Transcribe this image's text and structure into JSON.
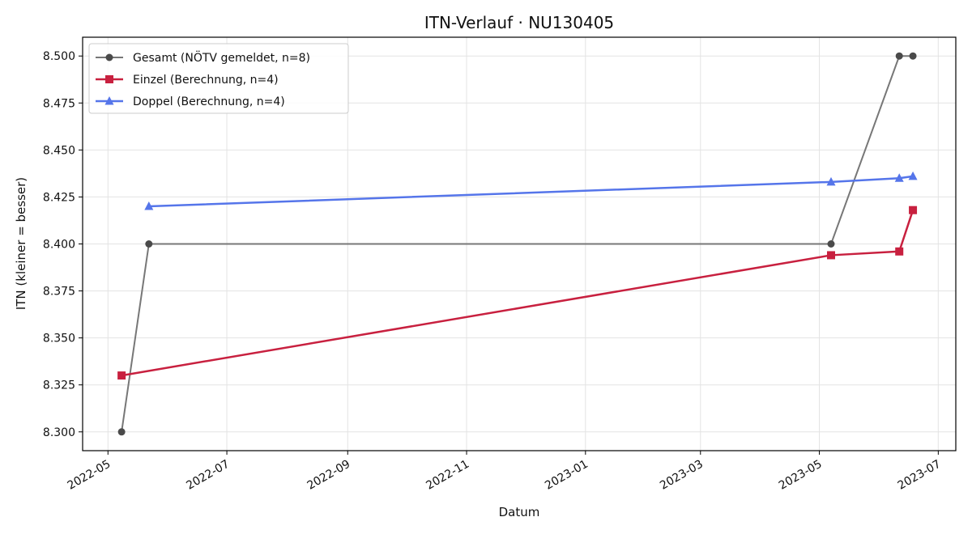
{
  "chart_data": {
    "type": "line",
    "title": "ITN-Verlauf · NU130405",
    "xlabel": "Datum",
    "ylabel": "ITN  (kleiner = besser)",
    "x_type": "date",
    "xlim": [
      "2022-04-18",
      "2023-07-10"
    ],
    "ylim": [
      8.29,
      8.51
    ],
    "x_ticks": [
      "2022-05-01",
      "2022-07-01",
      "2022-09-01",
      "2022-11-01",
      "2023-01-01",
      "2023-03-01",
      "2023-05-01",
      "2023-07-01"
    ],
    "x_tick_labels": [
      "2022-05",
      "2022-07",
      "2022-09",
      "2022-11",
      "2023-01",
      "2023-03",
      "2023-05",
      "2023-07"
    ],
    "y_ticks": [
      8.3,
      8.325,
      8.35,
      8.375,
      8.4,
      8.425,
      8.45,
      8.475,
      8.5
    ],
    "y_tick_labels": [
      "8.300",
      "8.325",
      "8.350",
      "8.375",
      "8.400",
      "8.425",
      "8.450",
      "8.475",
      "8.500"
    ],
    "grid": true,
    "legend_position": "top-left",
    "series": [
      {
        "name": "Gesamt (NÖTV gemeldet, n=8)",
        "color": "#777777",
        "marker": "circle",
        "x": [
          "2022-05-08",
          "2022-05-22",
          "2023-05-07",
          "2023-06-11",
          "2023-06-18"
        ],
        "y": [
          8.3,
          8.4,
          8.4,
          8.5,
          8.5
        ]
      },
      {
        "name": "Einzel (Berechnung, n=4)",
        "color": "#c8203f",
        "marker": "square",
        "x": [
          "2022-05-08",
          "2023-05-07",
          "2023-06-11",
          "2023-06-18"
        ],
        "y": [
          8.33,
          8.394,
          8.396,
          8.418
        ]
      },
      {
        "name": "Doppel (Berechnung, n=4)",
        "color": "#5575ea",
        "marker": "triangle",
        "x": [
          "2022-05-22",
          "2023-05-07",
          "2023-06-11",
          "2023-06-18"
        ],
        "y": [
          8.42,
          8.433,
          8.435,
          8.436
        ]
      }
    ]
  }
}
